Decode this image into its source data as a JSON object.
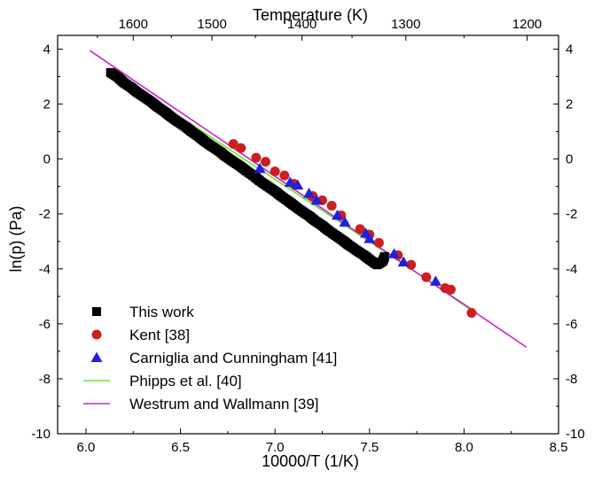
{
  "chart_data": {
    "type": "scatter",
    "xlabel": "10000/T (1/K)",
    "ylabel": "ln(p) (Pa)",
    "top_xlabel": "Temperature (K)",
    "xlim": [
      5.85,
      8.5
    ],
    "ylim": [
      -10,
      4.5
    ],
    "x_ticks": [
      6.0,
      6.5,
      7.0,
      7.5,
      8.0,
      8.5
    ],
    "x_tick_labels": [
      "6.0",
      "6.5",
      "7.0",
      "7.5",
      "8.0",
      "8.5"
    ],
    "y_ticks": [
      -10,
      -8,
      -6,
      -4,
      -2,
      0,
      2,
      4
    ],
    "y_tick_labels": [
      "-10",
      "-8",
      "-6",
      "-4",
      "-2",
      "0",
      "2",
      "4"
    ],
    "top_ticks_K": [
      1600,
      1500,
      1400,
      1300,
      1200
    ],
    "top_tick_labels": [
      "1600",
      "1500",
      "1400",
      "1300",
      "1200"
    ],
    "grid": false,
    "legend_position": "bottom-left",
    "series": [
      {
        "name": "This work",
        "kind": "scatter",
        "marker": "square",
        "color": "#000000",
        "x": [
          6.13,
          6.17,
          6.2,
          6.24,
          6.27,
          6.31,
          6.35,
          6.38,
          6.42,
          6.45,
          6.49,
          6.53,
          6.56,
          6.6,
          6.63,
          6.67,
          6.71,
          6.74,
          6.78,
          6.82,
          6.85,
          6.89,
          6.92,
          6.96,
          7.0,
          7.03,
          7.07,
          7.1,
          7.14,
          7.18,
          7.21,
          7.25,
          7.28,
          7.32,
          7.36,
          7.39,
          7.43,
          7.47,
          7.5,
          7.54,
          7.57,
          7.58
        ],
        "y": [
          3.15,
          2.97,
          2.78,
          2.6,
          2.43,
          2.25,
          2.06,
          1.89,
          1.7,
          1.53,
          1.34,
          1.16,
          0.99,
          0.8,
          0.63,
          0.44,
          0.26,
          0.09,
          -0.1,
          -0.28,
          -0.44,
          -0.63,
          -0.8,
          -0.99,
          -1.17,
          -1.34,
          -1.53,
          -1.69,
          -1.89,
          -2.07,
          -2.24,
          -2.42,
          -2.59,
          -2.78,
          -2.97,
          -3.13,
          -3.32,
          -3.5,
          -3.66,
          -3.85,
          -3.72,
          -3.55
        ]
      },
      {
        "name": "Kent [38]",
        "kind": "scatter",
        "marker": "circle",
        "color": "#cc1f1f",
        "x": [
          6.78,
          6.82,
          6.9,
          6.95,
          7.0,
          7.05,
          7.1,
          7.2,
          7.25,
          7.3,
          7.35,
          7.45,
          7.5,
          7.55,
          7.65,
          7.72,
          7.8,
          7.9,
          7.93,
          8.04
        ],
        "y": [
          0.55,
          0.4,
          0.05,
          -0.1,
          -0.45,
          -0.6,
          -0.9,
          -1.35,
          -1.5,
          -1.7,
          -2.05,
          -2.55,
          -2.75,
          -3.05,
          -3.5,
          -3.85,
          -4.3,
          -4.7,
          -4.75,
          -5.6
        ]
      },
      {
        "name": "Carniglia and Cunningham [41]",
        "kind": "scatter",
        "marker": "triangle",
        "color": "#2020dd",
        "x": [
          6.92,
          7.08,
          7.12,
          7.18,
          7.22,
          7.33,
          7.37,
          7.48,
          7.5,
          7.63,
          7.68,
          7.85
        ],
        "y": [
          -0.35,
          -0.85,
          -0.95,
          -1.25,
          -1.5,
          -2.05,
          -2.3,
          -2.7,
          -2.9,
          -3.45,
          -3.75,
          -4.45
        ]
      },
      {
        "name": "Phipps et al. [40]",
        "kind": "line",
        "color": "#66ee22",
        "x": [
          6.55,
          8.05
        ],
        "y": [
          1.3,
          -5.5
        ]
      },
      {
        "name": "Westrum and Wallmann [39]",
        "kind": "line",
        "color": "#cc22cc",
        "x": [
          6.02,
          8.33
        ],
        "y": [
          3.95,
          -6.85
        ]
      }
    ]
  }
}
